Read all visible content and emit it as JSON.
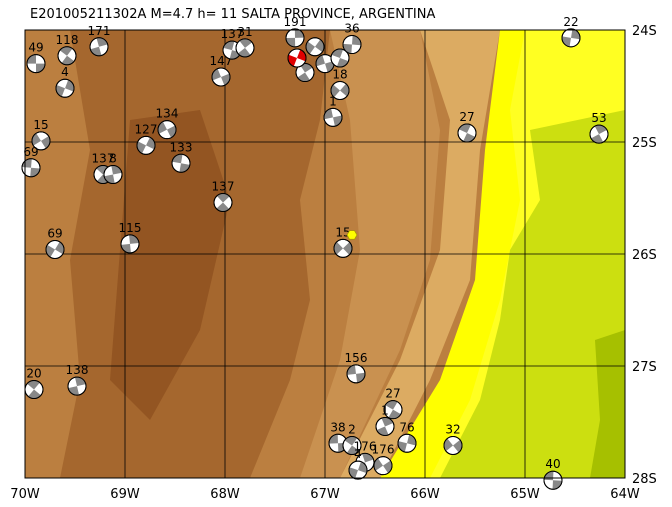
{
  "map": {
    "title": "E201005211302A  M=4.7  h= 11 SALTA PROVINCE, ARGENTINA",
    "xlim": [
      -70,
      -64
    ],
    "ylim": [
      -28,
      -24
    ],
    "xticks": [
      {
        "value": -70,
        "label": "70W"
      },
      {
        "value": -69,
        "label": "69W"
      },
      {
        "value": -68,
        "label": "68W"
      },
      {
        "value": -67,
        "label": "67W"
      },
      {
        "value": -66,
        "label": "66W"
      },
      {
        "value": -65,
        "label": "65W"
      },
      {
        "value": -64,
        "label": "64W"
      }
    ],
    "yticks": [
      {
        "value": -24,
        "label": "24S"
      },
      {
        "value": -25,
        "label": "25S"
      },
      {
        "value": -26,
        "label": "26S"
      },
      {
        "value": -27,
        "label": "27S"
      },
      {
        "value": -28,
        "label": "28S"
      }
    ],
    "main_event": {
      "lon": -67.28,
      "lat": -24.25
    },
    "epicenter": {
      "lon": -66.73,
      "lat": -25.83
    },
    "events": [
      {
        "label": "49",
        "lon": -69.89,
        "lat": -24.3
      },
      {
        "label": "118",
        "lon": -69.58,
        "lat": -24.23
      },
      {
        "label": "171",
        "lon": -69.26,
        "lat": -24.15
      },
      {
        "label": "4",
        "lon": -69.6,
        "lat": -24.52
      },
      {
        "label": "15",
        "lon": -69.84,
        "lat": -24.99
      },
      {
        "label": "69",
        "lon": -69.94,
        "lat": -25.23
      },
      {
        "label": "137",
        "lon": -69.22,
        "lat": -25.29
      },
      {
        "label": "8",
        "lon": -69.12,
        "lat": -25.29
      },
      {
        "label": "127",
        "lon": -68.79,
        "lat": -25.03
      },
      {
        "label": "134",
        "lon": -68.58,
        "lat": -24.89
      },
      {
        "label": "133",
        "lon": -68.44,
        "lat": -25.19
      },
      {
        "label": "137",
        "lon": -68.02,
        "lat": -25.54
      },
      {
        "label": "115",
        "lon": -68.95,
        "lat": -25.91
      },
      {
        "label": "69",
        "lon": -69.7,
        "lat": -25.96
      },
      {
        "label": "147",
        "lon": -68.04,
        "lat": -24.42
      },
      {
        "label": "137",
        "lon": -67.93,
        "lat": -24.18
      },
      {
        "label": "31",
        "lon": -67.8,
        "lat": -24.16
      },
      {
        "label": "191",
        "lon": -67.3,
        "lat": -24.07
      },
      {
        "label": null,
        "lon": -67.1,
        "lat": -24.15
      },
      {
        "label": null,
        "lon": -67.0,
        "lat": -24.3
      },
      {
        "label": null,
        "lon": -66.85,
        "lat": -24.25
      },
      {
        "label": null,
        "lon": -67.2,
        "lat": -24.38
      },
      {
        "label": "36",
        "lon": -66.73,
        "lat": -24.13
      },
      {
        "label": "18",
        "lon": -66.85,
        "lat": -24.54
      },
      {
        "label": "1",
        "lon": -66.92,
        "lat": -24.78
      },
      {
        "label": "27",
        "lon": -65.58,
        "lat": -24.92
      },
      {
        "label": "53",
        "lon": -64.26,
        "lat": -24.93
      },
      {
        "label": "22",
        "lon": -64.54,
        "lat": -24.07
      },
      {
        "label": "15",
        "lon": -66.82,
        "lat": -25.95
      },
      {
        "label": "156",
        "lon": -66.69,
        "lat": -27.07
      },
      {
        "label": "27",
        "lon": -66.32,
        "lat": -27.39
      },
      {
        "label": "1",
        "lon": -66.4,
        "lat": -27.54
      },
      {
        "label": "76",
        "lon": -66.18,
        "lat": -27.69
      },
      {
        "label": "32",
        "lon": -65.72,
        "lat": -27.71
      },
      {
        "label": "38",
        "lon": -66.87,
        "lat": -27.69
      },
      {
        "label": "2",
        "lon": -66.73,
        "lat": -27.71
      },
      {
        "label": "176",
        "lon": -66.6,
        "lat": -27.86
      },
      {
        "label": "4",
        "lon": -66.67,
        "lat": -27.93
      },
      {
        "label": "176",
        "lon": -66.42,
        "lat": -27.89
      },
      {
        "label": "40",
        "lon": -64.72,
        "lat": -28.02
      },
      {
        "label": "20",
        "lon": -69.91,
        "lat": -27.21
      },
      {
        "label": "138",
        "lon": -69.48,
        "lat": -27.18
      }
    ]
  }
}
